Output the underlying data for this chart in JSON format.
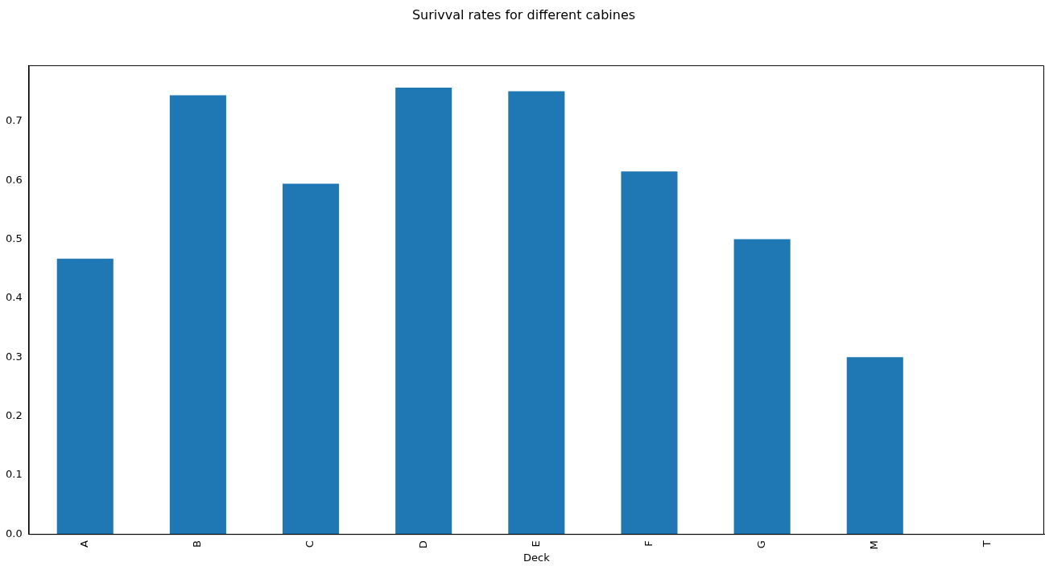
{
  "chart_data": {
    "type": "bar",
    "title": "Surivval rates for different cabines",
    "xlabel": "Deck",
    "categories": [
      "A",
      "B",
      "C",
      "D",
      "E",
      "F",
      "G",
      "M",
      "T"
    ],
    "values": [
      0.467,
      0.744,
      0.594,
      0.757,
      0.751,
      0.615,
      0.5,
      0.3,
      0
    ],
    "color": "#1f77b4",
    "ylim": [
      0,
      0.795
    ],
    "yticks": [
      {
        "value": 0,
        "label": "0.0"
      },
      {
        "value": 0.1,
        "label": "0.1"
      },
      {
        "value": 0.2,
        "label": "0.2"
      },
      {
        "value": 0.3,
        "label": "0.3"
      },
      {
        "value": 0.4,
        "label": "0.4"
      },
      {
        "value": 0.5,
        "label": "0.5"
      },
      {
        "value": 0.6,
        "label": "0.6"
      },
      {
        "value": 0.7,
        "label": "0.7"
      }
    ],
    "grid": false,
    "legend": false
  }
}
